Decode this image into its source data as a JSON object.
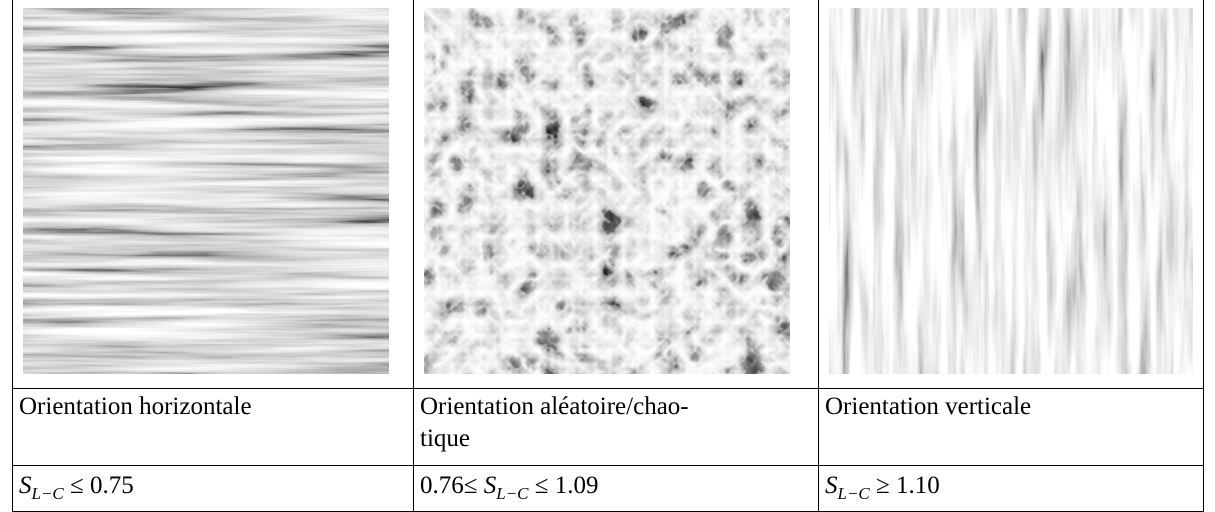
{
  "table": {
    "captions": [
      [
        "Orientation horizontale"
      ],
      [
        "Orientation aléatoire/chao-",
        "tique"
      ],
      [
        "Orientation verticale"
      ]
    ],
    "criteria": [
      {
        "prefix": "",
        "symbol": "S",
        "subscript": "L−C",
        "suffix": " ≤ 0.75"
      },
      {
        "prefix": "0.76≤ ",
        "symbol": "S",
        "subscript": "L−C",
        "suffix": " ≤ 1.09"
      },
      {
        "prefix": "",
        "symbol": "S",
        "subscript": "L−C",
        "suffix": " ≥ 1.10"
      }
    ]
  }
}
